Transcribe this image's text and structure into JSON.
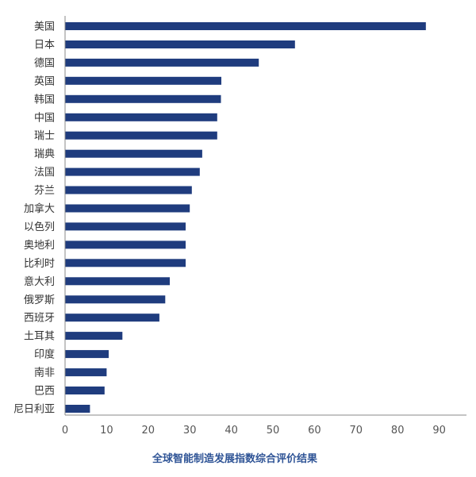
{
  "chart_data": {
    "type": "bar",
    "orientation": "horizontal",
    "title": "全球智能制造发展指数综合评价结果",
    "xlabel": "",
    "ylabel": "",
    "categories": [
      "美国",
      "日本",
      "德国",
      "英国",
      "韩国",
      "中国",
      "瑞士",
      "瑞典",
      "法国",
      "芬兰",
      "加拿大",
      "以色列",
      "奥地利",
      "比利时",
      "意大利",
      "俄罗斯",
      "西班牙",
      "土耳其",
      "印度",
      "南非",
      "巴西",
      "尼日利亚"
    ],
    "values": [
      86.8,
      55.3,
      46.6,
      37.6,
      37.5,
      36.6,
      36.6,
      33.0,
      32.4,
      30.5,
      30.0,
      29.0,
      29.0,
      29.0,
      25.2,
      24.1,
      22.7,
      13.8,
      10.5,
      10.0,
      9.5,
      6.0
    ],
    "xlim": [
      0,
      90
    ],
    "xticks": [
      "0",
      "10",
      "20",
      "30",
      "40",
      "50",
      "60",
      "70",
      "80",
      "90"
    ],
    "grid": false,
    "colors": {
      "bar": "#1f3c7e",
      "axis": "#888888",
      "title": "#2f5496"
    }
  }
}
